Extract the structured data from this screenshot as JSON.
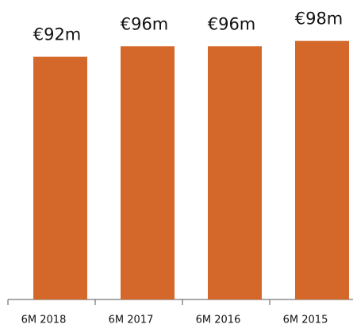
{
  "chart_data": {
    "type": "bar",
    "categories": [
      "6M 2018",
      "6M 2017",
      "6M 2016",
      "6M 2015"
    ],
    "values": [
      92,
      96,
      96,
      98
    ],
    "value_labels": [
      "€92m",
      "€96m",
      "€96m",
      "€98m"
    ],
    "color": "#d4682a"
  }
}
